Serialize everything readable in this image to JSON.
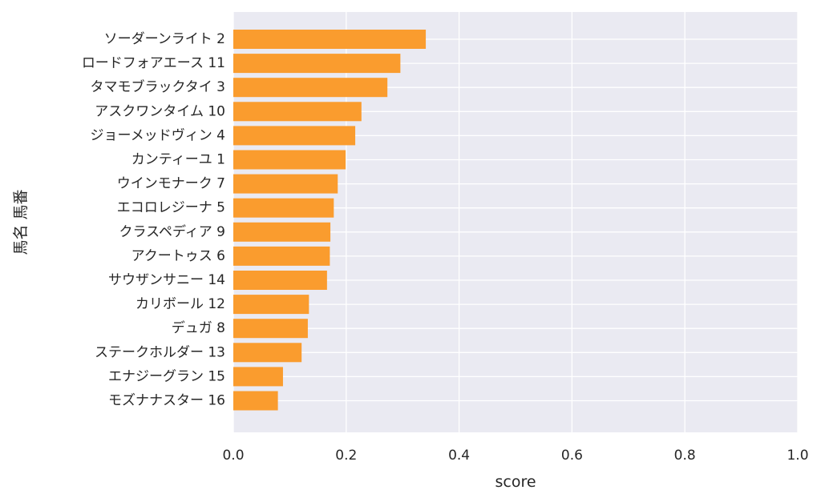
{
  "chart_data": {
    "type": "bar",
    "orientation": "horizontal",
    "categories": [
      "ソーダーンライト 2",
      "ロードフォアエース 11",
      "タマモブラックタイ 3",
      "アスクワンタイム 10",
      "ジョーメッドヴィン 4",
      "カンティーユ 1",
      "ウインモナーク 7",
      "エコロレジーナ 5",
      "クラスペディア 9",
      "アクートゥス 6",
      "サウザンサニー 14",
      "カリボール 12",
      "デュガ 8",
      "ステークホルダー 13",
      "エナジーグラン 15",
      "モズナナスター 16"
    ],
    "values": [
      0.341,
      0.296,
      0.273,
      0.227,
      0.216,
      0.199,
      0.185,
      0.178,
      0.172,
      0.171,
      0.166,
      0.134,
      0.132,
      0.121,
      0.088,
      0.079
    ],
    "xlabel": "score",
    "ylabel": "馬名 馬番",
    "xlim": [
      0.0,
      1.0
    ],
    "xticks": [
      "0.0",
      "0.2",
      "0.4",
      "0.6",
      "0.8",
      "1.0"
    ],
    "grid": true,
    "colors": {
      "bar": "#fa9c2e",
      "plot_bg": "#eaeaf2",
      "grid": "#ffffff"
    }
  }
}
